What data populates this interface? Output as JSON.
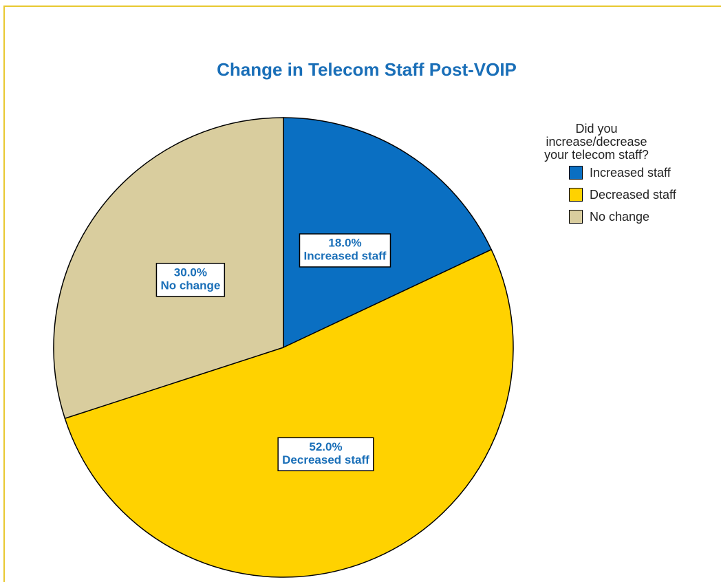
{
  "chart_data": {
    "type": "pie",
    "title": "Change in Telecom Staff Post-VOIP",
    "legend_title": "Did you increase/decrease your telecom staff?",
    "categories": [
      "Increased staff",
      "Decreased staff",
      "No change"
    ],
    "values": [
      18,
      52,
      30
    ],
    "value_labels": [
      "18.0%",
      "52.0%",
      "30.0%"
    ],
    "colors": [
      "#0a6fc2",
      "#ffd200",
      "#d9cd9e"
    ],
    "legend": "right"
  }
}
